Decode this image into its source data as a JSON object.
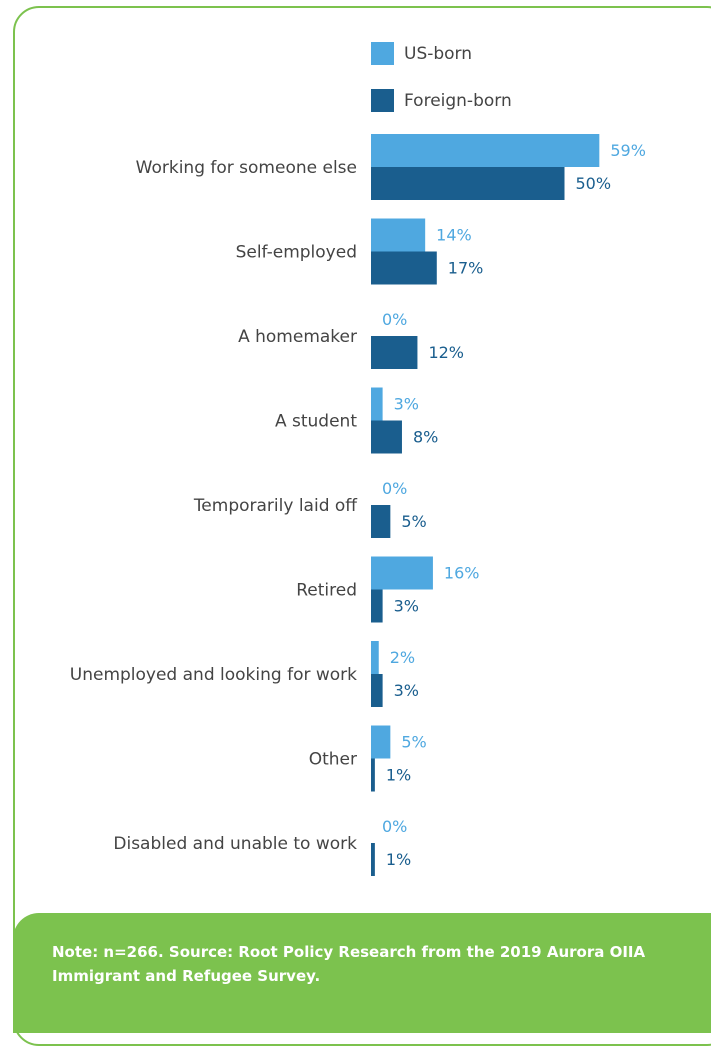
{
  "chart_data": {
    "type": "bar",
    "orientation": "horizontal",
    "categories": [
      "Working for someone else",
      "Self-employed",
      "A homemaker",
      "A student",
      "Temporarily laid off",
      "Retired",
      "Unemployed and looking for work",
      "Other",
      "Disabled and unable to work"
    ],
    "series": [
      {
        "name": "US-born",
        "color": "#4fa8e0",
        "values": [
          59,
          14,
          0,
          3,
          0,
          16,
          2,
          5,
          0
        ],
        "labels": [
          "59%",
          "14%",
          "0%",
          "3%",
          "0%",
          "16%",
          "2%",
          "5%",
          "0%"
        ]
      },
      {
        "name": "Foreign-born",
        "color": "#1a5e8e",
        "values": [
          50,
          17,
          12,
          8,
          5,
          3,
          3,
          1,
          1
        ],
        "labels": [
          "50%",
          "17%",
          "12%",
          "8%",
          "5%",
          "3%",
          "3%",
          "1%",
          "1%"
        ]
      }
    ],
    "unit": "%",
    "xlim": [
      0,
      65
    ],
    "legend_position": "top",
    "grid": false
  },
  "footer": {
    "note": "Note: n=266. Source: Root Policy Research from the 2019 Aurora OIIA Immigrant and Refugee Survey."
  }
}
